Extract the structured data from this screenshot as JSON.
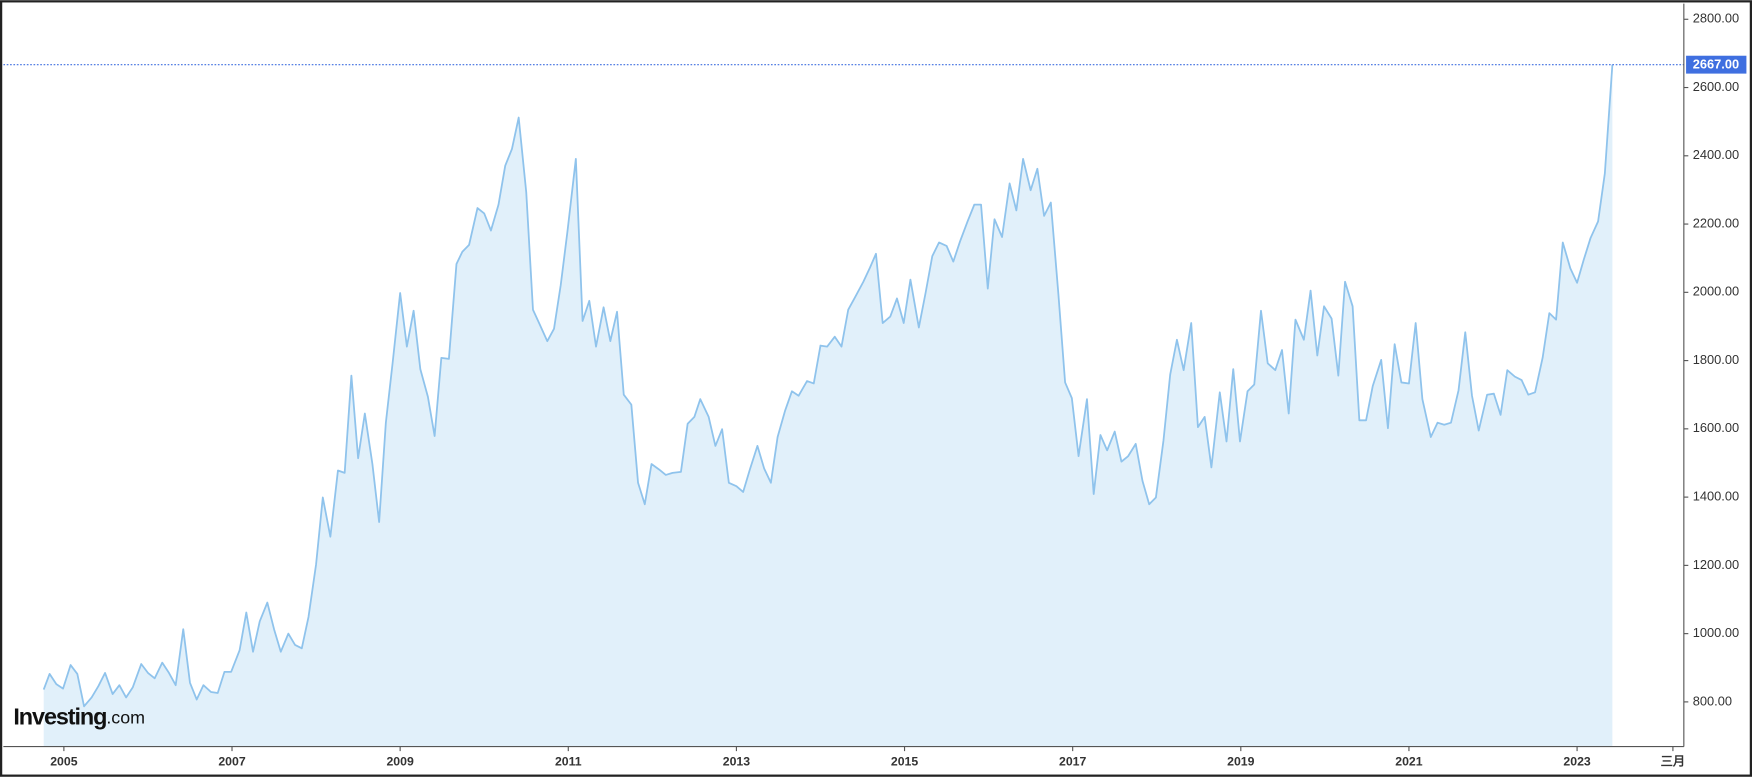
{
  "chart_data": {
    "type": "area",
    "logo": {
      "brand": "Investing",
      "suffix": ".com"
    },
    "x": [
      2004.76,
      2004.83,
      2004.91,
      2004.99,
      2005.08,
      2005.16,
      2005.24,
      2005.33,
      2005.41,
      2005.49,
      2005.58,
      2005.66,
      2005.74,
      2005.82,
      2005.92,
      2006.0,
      2006.08,
      2006.17,
      2006.25,
      2006.33,
      2006.42,
      2006.5,
      2006.58,
      2006.66,
      2006.75,
      2006.83,
      2006.91,
      2006.99,
      2007.09,
      2007.17,
      2007.25,
      2007.33,
      2007.42,
      2007.5,
      2007.58,
      2007.67,
      2007.75,
      2007.83,
      2007.91,
      2008.0,
      2008.08,
      2008.17,
      2008.26,
      2008.34,
      2008.42,
      2008.5,
      2008.58,
      2008.67,
      2008.75,
      2008.83,
      2008.91,
      2009.0,
      2009.08,
      2009.16,
      2009.24,
      2009.33,
      2009.41,
      2009.49,
      2009.58,
      2009.67,
      2009.74,
      2009.82,
      2009.92,
      2010.0,
      2010.08,
      2010.17,
      2010.25,
      2010.33,
      2010.41,
      2010.5,
      2010.58,
      2010.66,
      2010.75,
      2010.83,
      2010.91,
      2010.99,
      2011.09,
      2011.17,
      2011.25,
      2011.33,
      2011.42,
      2011.5,
      2011.58,
      2011.66,
      2011.75,
      2011.83,
      2011.91,
      2011.99,
      2012.08,
      2012.16,
      2012.24,
      2012.34,
      2012.42,
      2012.5,
      2012.57,
      2012.67,
      2012.75,
      2012.83,
      2012.91,
      2013.0,
      2013.08,
      2013.16,
      2013.25,
      2013.33,
      2013.41,
      2013.49,
      2013.58,
      2013.66,
      2013.74,
      2013.84,
      2013.92,
      2014.0,
      2014.08,
      2014.17,
      2014.25,
      2014.33,
      2014.41,
      2014.51,
      2014.59,
      2014.66,
      2014.74,
      2014.83,
      2014.91,
      2014.99,
      2015.07,
      2015.17,
      2015.25,
      2015.33,
      2015.41,
      2015.5,
      2015.58,
      2015.66,
      2015.75,
      2015.83,
      2015.91,
      2015.99,
      2016.07,
      2016.16,
      2016.25,
      2016.33,
      2016.41,
      2016.5,
      2016.58,
      2016.66,
      2016.74,
      2016.83,
      2016.91,
      2016.99,
      2017.07,
      2017.17,
      2017.25,
      2017.33,
      2017.41,
      2017.5,
      2017.58,
      2017.66,
      2017.75,
      2017.83,
      2017.91,
      2017.99,
      2018.08,
      2018.16,
      2018.24,
      2018.32,
      2018.41,
      2018.49,
      2018.57,
      2018.65,
      2018.75,
      2018.83,
      2018.91,
      2018.99,
      2019.08,
      2019.16,
      2019.24,
      2019.32,
      2019.41,
      2019.49,
      2019.57,
      2019.65,
      2019.75,
      2019.83,
      2019.91,
      2019.99,
      2020.08,
      2020.16,
      2020.24,
      2020.33,
      2020.41,
      2020.49,
      2020.57,
      2020.67,
      2020.75,
      2020.83,
      2020.91,
      2021.0,
      2021.08,
      2021.16,
      2021.26,
      2021.34,
      2021.42,
      2021.5,
      2021.59,
      2021.67,
      2021.75,
      2021.83,
      2021.93,
      2022.01,
      2022.09,
      2022.17,
      2022.26,
      2022.34,
      2022.42,
      2022.5,
      2022.59,
      2022.67,
      2022.75,
      2022.83,
      2022.92,
      2023.0,
      2023.08,
      2023.16,
      2023.25,
      2023.33,
      2023.42
    ],
    "values": [
      836,
      882,
      852,
      839,
      908,
      882,
      787,
      813,
      846,
      885,
      823,
      849,
      813,
      843,
      911,
      885,
      869,
      915,
      885,
      849,
      1013,
      856,
      807,
      849,
      829,
      826,
      888,
      888,
      951,
      1062,
      947,
      1036,
      1091,
      1013,
      947,
      1000,
      967,
      957,
      1049,
      1203,
      1399,
      1284,
      1478,
      1471,
      1756,
      1514,
      1645,
      1497,
      1327,
      1618,
      1792,
      1998,
      1841,
      1946,
      1775,
      1694,
      1579,
      1808,
      1805,
      2083,
      2119,
      2139,
      2247,
      2231,
      2181,
      2257,
      2371,
      2420,
      2512,
      2293,
      1949,
      1906,
      1857,
      1893,
      2021,
      2178,
      2391,
      1916,
      1975,
      1841,
      1956,
      1857,
      1943,
      1700,
      1671,
      1442,
      1379,
      1497,
      1481,
      1465,
      1471,
      1474,
      1615,
      1635,
      1687,
      1635,
      1550,
      1599,
      1442,
      1432,
      1415,
      1481,
      1550,
      1484,
      1442,
      1576,
      1654,
      1710,
      1697,
      1740,
      1733,
      1844,
      1841,
      1870,
      1841,
      1949,
      1985,
      2031,
      2073,
      2113,
      1910,
      1929,
      1982,
      1910,
      2037,
      1897,
      1998,
      2106,
      2146,
      2136,
      2090,
      2149,
      2208,
      2257,
      2257,
      2011,
      2214,
      2162,
      2319,
      2240,
      2391,
      2299,
      2362,
      2224,
      2263,
      1995,
      1736,
      1690,
      1520,
      1687,
      1409,
      1582,
      1537,
      1592,
      1504,
      1520,
      1556,
      1448,
      1379,
      1399,
      1566,
      1759,
      1861,
      1772,
      1910,
      1605,
      1635,
      1487,
      1707,
      1563,
      1775,
      1563,
      1710,
      1730,
      1946,
      1792,
      1772,
      1831,
      1645,
      1920,
      1861,
      2005,
      1815,
      1959,
      1923,
      1756,
      2031,
      1959,
      1625,
      1625,
      1726,
      1802,
      1602,
      1848,
      1736,
      1733,
      1910,
      1687,
      1576,
      1618,
      1612,
      1618,
      1713,
      1883,
      1697,
      1595,
      1700,
      1703,
      1641,
      1772,
      1753,
      1743,
      1700,
      1707,
      1808,
      1939,
      1920,
      2146,
      2070,
      2028,
      2096,
      2159,
      2208,
      2348,
      2667
    ],
    "color": "#8fc3ec",
    "fill": "#e1f0fa",
    "xlim": [
      2004.28,
      2024.27
    ],
    "xticks": [
      {
        "value": 2005,
        "label": "2005"
      },
      {
        "value": 2007,
        "label": "2007"
      },
      {
        "value": 2009,
        "label": "2009"
      },
      {
        "value": 2011,
        "label": "2011"
      },
      {
        "value": 2013,
        "label": "2013"
      },
      {
        "value": 2015,
        "label": "2015"
      },
      {
        "value": 2017,
        "label": "2017"
      },
      {
        "value": 2019,
        "label": "2019"
      },
      {
        "value": 2021,
        "label": "2021"
      },
      {
        "value": 2023,
        "label": "2023"
      },
      {
        "value": 2024.14,
        "label": "三月"
      }
    ],
    "ylim": [
      669,
      2846
    ],
    "yticks": [
      {
        "value": 800,
        "label": "800.00"
      },
      {
        "value": 1000,
        "label": "1000.00"
      },
      {
        "value": 1200,
        "label": "1200.00"
      },
      {
        "value": 1400,
        "label": "1400.00"
      },
      {
        "value": 1600,
        "label": "1600.00"
      },
      {
        "value": 1800,
        "label": "1800.00"
      },
      {
        "value": 2000,
        "label": "2000.00"
      },
      {
        "value": 2200,
        "label": "2200.00"
      },
      {
        "value": 2400,
        "label": "2400.00"
      },
      {
        "value": 2600,
        "label": "2600.00"
      },
      {
        "value": 2800,
        "label": "2800.00"
      }
    ],
    "price_line": {
      "value": 2667,
      "label": "2667.00",
      "color": "#3f6fe0"
    }
  }
}
